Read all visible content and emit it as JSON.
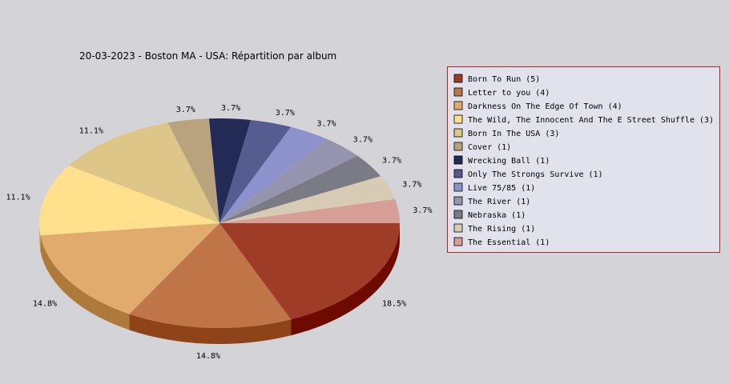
{
  "chart_data": {
    "type": "pie",
    "title": "20-03-2023 - Boston MA - USA:  Répartition par album",
    "legend_position": "right",
    "style": "3d",
    "slices": [
      {
        "label": "Born To Run",
        "value": 5,
        "percent_label": "18.5%",
        "color": "#9e3c27",
        "side_color": "#6e0a00"
      },
      {
        "label": "Letter to you",
        "value": 4,
        "percent_label": "14.8%",
        "color": "#c07548",
        "side_color": "#8e4418"
      },
      {
        "label": "Darkness On The Edge Of Town",
        "value": 4,
        "percent_label": "14.8%",
        "color": "#e0ab6c",
        "side_color": "#ae7a3c"
      },
      {
        "label": "The Wild, The Innocent And The E Street Shuffle",
        "value": 3,
        "percent_label": "11.1%",
        "color": "#ffe08c",
        "side_color": "#cdaf5c"
      },
      {
        "label": "Born In The USA",
        "value": 3,
        "percent_label": "11.1%",
        "color": "#dec689",
        "side_color": "#ac9658"
      },
      {
        "label": "Cover",
        "value": 1,
        "percent_label": "3.7%",
        "color": "#b8a37c",
        "side_color": "#88734c"
      },
      {
        "label": "Wrecking Ball",
        "value": 1,
        "percent_label": "3.7%",
        "color": "#232a55",
        "side_color": "#101530"
      },
      {
        "label": "Only The Strongs Survive",
        "value": 1,
        "percent_label": "3.7%",
        "color": "#545c90",
        "side_color": "#303660"
      },
      {
        "label": "Live 75/85",
        "value": 1,
        "percent_label": "3.7%",
        "color": "#8e92cc",
        "side_color": "#5e629c"
      },
      {
        "label": "The River",
        "value": 1,
        "percent_label": "3.7%",
        "color": "#9594ae",
        "side_color": "#65647e"
      },
      {
        "label": "Nebraska",
        "value": 1,
        "percent_label": "3.7%",
        "color": "#7b7b85",
        "side_color": "#4b4b55"
      },
      {
        "label": "The Rising",
        "value": 1,
        "percent_label": "3.7%",
        "color": "#d8cbb3",
        "side_color": "#a89b83"
      },
      {
        "label": "The Essential",
        "value": 1,
        "percent_label": "3.7%",
        "color": "#d69e96",
        "side_color": "#a66e66"
      }
    ],
    "legend_suffix_format": "({value})"
  }
}
